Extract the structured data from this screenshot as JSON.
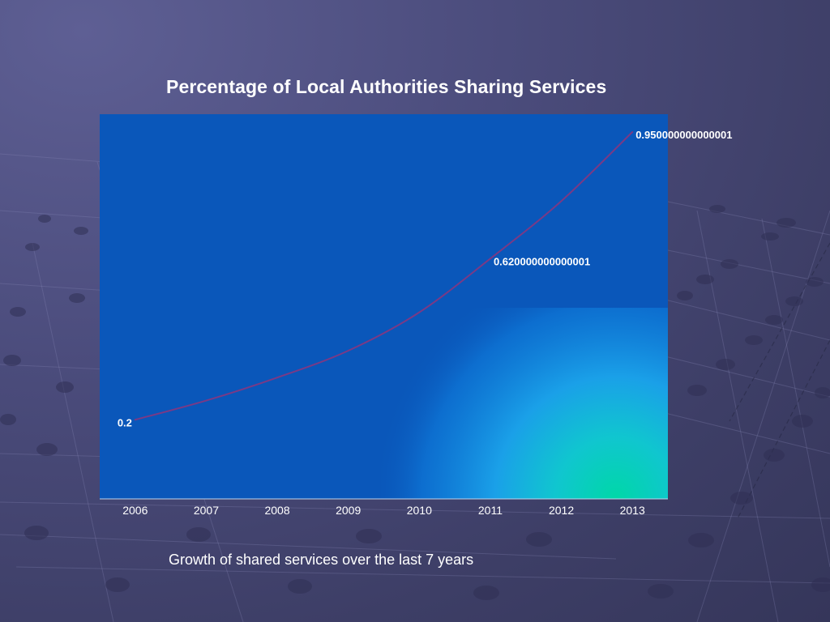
{
  "caption": "Growth of shared services over the last 7 years",
  "colors": {
    "plot_fill": "#0a57ba",
    "line": "#7a3a86",
    "text": "#ffffff"
  },
  "chart_data": {
    "type": "line",
    "title": "Percentage of Local Authorities Sharing Services",
    "xlabel": "",
    "ylabel": "",
    "categories": [
      "2006",
      "2007",
      "2008",
      "2009",
      "2010",
      "2011",
      "2012",
      "2013"
    ],
    "series": [
      {
        "values": [
          0.2,
          0.25,
          0.31,
          0.38,
          0.48,
          0.620000000000001,
          0.77,
          0.950000000000001
        ],
        "data_labels": [
          {
            "index": 0,
            "text": "0.2"
          },
          {
            "index": 5,
            "text": "0.620000000000001"
          },
          {
            "index": 7,
            "text": "0.950000000000001"
          }
        ]
      }
    ],
    "ylim": [
      0,
      1
    ],
    "grid": false,
    "smooth": true
  }
}
